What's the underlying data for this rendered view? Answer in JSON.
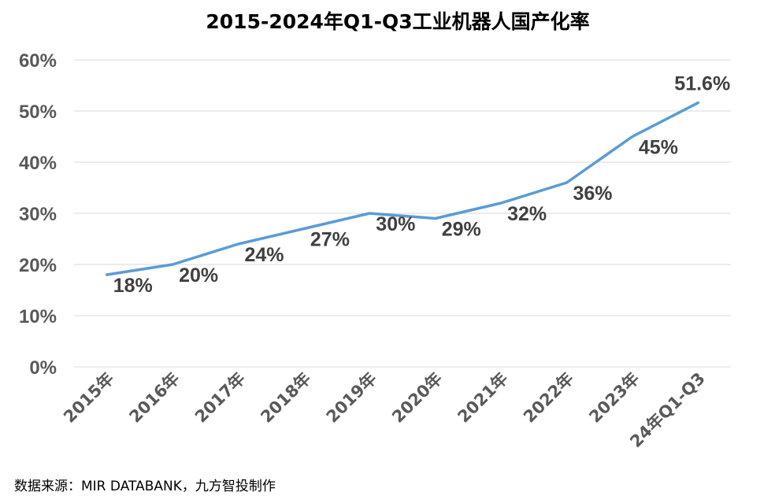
{
  "chart_data": {
    "type": "line",
    "title": "2015-2024年Q1-Q3工业机器人国产化率",
    "categories": [
      "2015年",
      "2016年",
      "2017年",
      "2018年",
      "2019年",
      "2020年",
      "2021年",
      "2022年",
      "2023年",
      "24年Q1-Q3"
    ],
    "series": [
      {
        "values": [
          18,
          20,
          24,
          27,
          30,
          29,
          32,
          36,
          45,
          51.6
        ],
        "data_labels": [
          "18%",
          "20%",
          "24%",
          "27%",
          "30%",
          "29%",
          "32%",
          "36%",
          "45%",
          "51.6%"
        ],
        "color": "#5b9bd5"
      }
    ],
    "y_ticks": [
      "0%",
      "10%",
      "20%",
      "30%",
      "40%",
      "50%",
      "60%"
    ],
    "y_tick_values": [
      0,
      10,
      20,
      30,
      40,
      50,
      60
    ],
    "ylim": [
      0,
      60
    ],
    "xlabel": "",
    "ylabel": "",
    "grid": true,
    "legend": "none"
  },
  "source": "数据来源：MIR DATABANK，九方智投制作"
}
